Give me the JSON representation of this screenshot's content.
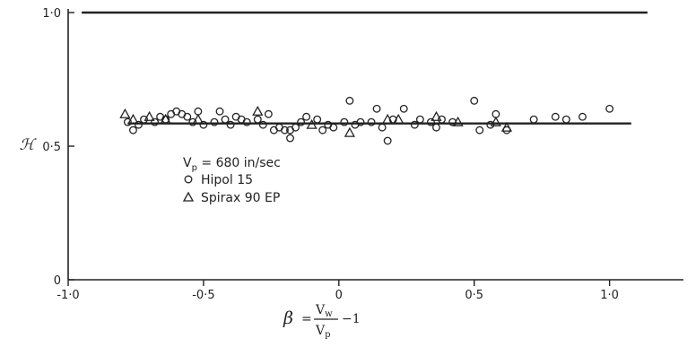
{
  "chart_data": {
    "type": "scatter",
    "xlim": [
      -1.0,
      1.2
    ],
    "ylim": [
      0,
      1.0
    ],
    "x_ticks": [
      {
        "value": -1.0,
        "label": "-1·0"
      },
      {
        "value": -0.5,
        "label": "-0·5"
      },
      {
        "value": 0.0,
        "label": "0"
      },
      {
        "value": 0.5,
        "label": "0·5"
      },
      {
        "value": 1.0,
        "label": "1·0"
      }
    ],
    "y_ticks": [
      {
        "value": 0.0,
        "label": "0"
      },
      {
        "value": 0.5,
        "label": "0·5"
      },
      {
        "value": 1.0,
        "label": "1·0"
      }
    ],
    "ylabel": "ℋ",
    "xlabel": {
      "beta": "β",
      "equals": "=",
      "numerator": "V",
      "numerator_sub": "w",
      "denominator": "V",
      "denominator_sub": "p",
      "suffix": "−1"
    },
    "reference_line": {
      "y": 1.0,
      "x_range": [
        -0.95,
        1.14
      ]
    },
    "fit_line": {
      "y": 0.585,
      "x_range": [
        -0.78,
        1.08
      ]
    },
    "legend": {
      "condition": {
        "prefix": "V",
        "sub": "p",
        "text": " = 680 in/sec"
      },
      "entries": [
        {
          "marker": "circle",
          "label": "Hipol 15"
        },
        {
          "marker": "triangle",
          "label": "Spirax 90 EP"
        }
      ]
    },
    "series": [
      {
        "name": "Hipol 15",
        "marker": "circle",
        "points": [
          [
            -0.78,
            0.59
          ],
          [
            -0.76,
            0.56
          ],
          [
            -0.74,
            0.58
          ],
          [
            -0.72,
            0.6
          ],
          [
            -0.68,
            0.59
          ],
          [
            -0.66,
            0.61
          ],
          [
            -0.64,
            0.6
          ],
          [
            -0.62,
            0.62
          ],
          [
            -0.6,
            0.63
          ],
          [
            -0.58,
            0.62
          ],
          [
            -0.56,
            0.61
          ],
          [
            -0.54,
            0.59
          ],
          [
            -0.52,
            0.63
          ],
          [
            -0.5,
            0.58
          ],
          [
            -0.46,
            0.59
          ],
          [
            -0.44,
            0.63
          ],
          [
            -0.42,
            0.6
          ],
          [
            -0.4,
            0.58
          ],
          [
            -0.38,
            0.61
          ],
          [
            -0.36,
            0.6
          ],
          [
            -0.34,
            0.59
          ],
          [
            -0.3,
            0.6
          ],
          [
            -0.28,
            0.58
          ],
          [
            -0.26,
            0.62
          ],
          [
            -0.24,
            0.56
          ],
          [
            -0.22,
            0.57
          ],
          [
            -0.2,
            0.56
          ],
          [
            -0.18,
            0.56
          ],
          [
            -0.18,
            0.53
          ],
          [
            -0.16,
            0.57
          ],
          [
            -0.14,
            0.59
          ],
          [
            -0.12,
            0.61
          ],
          [
            -0.08,
            0.6
          ],
          [
            -0.06,
            0.56
          ],
          [
            -0.04,
            0.58
          ],
          [
            -0.02,
            0.57
          ],
          [
            0.02,
            0.59
          ],
          [
            0.04,
            0.67
          ],
          [
            0.06,
            0.58
          ],
          [
            0.08,
            0.59
          ],
          [
            0.12,
            0.59
          ],
          [
            0.14,
            0.64
          ],
          [
            0.16,
            0.57
          ],
          [
            0.18,
            0.52
          ],
          [
            0.2,
            0.6
          ],
          [
            0.24,
            0.64
          ],
          [
            0.28,
            0.58
          ],
          [
            0.3,
            0.6
          ],
          [
            0.34,
            0.59
          ],
          [
            0.36,
            0.57
          ],
          [
            0.38,
            0.6
          ],
          [
            0.42,
            0.59
          ],
          [
            0.5,
            0.67
          ],
          [
            0.52,
            0.56
          ],
          [
            0.56,
            0.58
          ],
          [
            0.58,
            0.62
          ],
          [
            0.62,
            0.56
          ],
          [
            0.72,
            0.6
          ],
          [
            0.8,
            0.61
          ],
          [
            0.84,
            0.6
          ],
          [
            0.9,
            0.61
          ],
          [
            1.0,
            0.64
          ]
        ]
      },
      {
        "name": "Spirax 90 EP",
        "marker": "triangle",
        "points": [
          [
            -0.79,
            0.62
          ],
          [
            -0.76,
            0.6
          ],
          [
            -0.7,
            0.61
          ],
          [
            -0.64,
            0.6
          ],
          [
            -0.52,
            0.6
          ],
          [
            -0.3,
            0.63
          ],
          [
            -0.1,
            0.58
          ],
          [
            0.04,
            0.55
          ],
          [
            0.18,
            0.6
          ],
          [
            0.22,
            0.6
          ],
          [
            0.36,
            0.61
          ],
          [
            0.44,
            0.59
          ],
          [
            0.58,
            0.59
          ],
          [
            0.62,
            0.57
          ]
        ]
      }
    ]
  }
}
